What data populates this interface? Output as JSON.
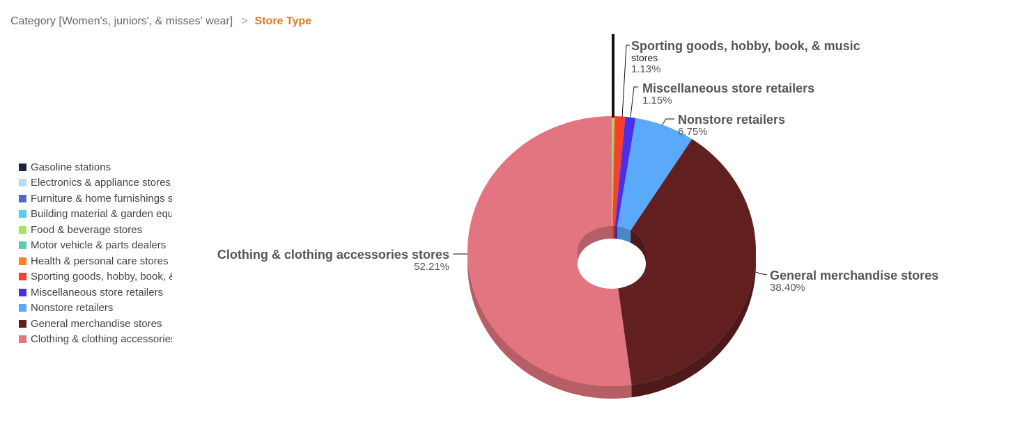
{
  "breadcrumb": {
    "parent": "Category [Women's, juniors', & misses' wear]",
    "separator": ">",
    "current": "Store Type"
  },
  "chart_data": {
    "type": "pie",
    "variant": "3d-donut",
    "legend_position": "left",
    "slices": [
      {
        "name": "Gasoline stations",
        "value": 0.02,
        "color": "#1b2447"
      },
      {
        "name": "Electronics & appliance stores",
        "value": 0.02,
        "color": "#b5dcf7"
      },
      {
        "name": "Furniture & home furnishings stores",
        "value": 0.02,
        "color": "#5468cc"
      },
      {
        "name": "Building material & garden equipment & supplies dealers",
        "value": 0.02,
        "color": "#5ccbef"
      },
      {
        "name": "Food & beverage stores",
        "value": 0.12,
        "color": "#a6e85a"
      },
      {
        "name": "Motor vehicle & parts dealers",
        "value": 0.02,
        "color": "#5ecbb0"
      },
      {
        "name": "Health & personal care stores",
        "value": 0.16,
        "color": "#ff7f2a"
      },
      {
        "name": "Sporting goods, hobby, book, & music stores",
        "value": 1.13,
        "color": "#f5402c"
      },
      {
        "name": "Miscellaneous store retailers",
        "value": 1.15,
        "color": "#4a2fe8"
      },
      {
        "name": "Nonstore retailers",
        "value": 6.75,
        "color": "#5aa9fa"
      },
      {
        "name": "General merchandise stores",
        "value": 38.4,
        "color": "#611f1f"
      },
      {
        "name": "Clothing & clothing accessories stores",
        "value": 52.21,
        "color": "#e37580"
      }
    ],
    "labels": [
      {
        "name": "Sporting goods, hobby, book, & music",
        "sub": "stores",
        "pct": "1.13%"
      },
      {
        "name": "Miscellaneous store retailers",
        "pct": "1.15%"
      },
      {
        "name": "Nonstore retailers",
        "pct": "6.75%"
      },
      {
        "name": "General merchandise stores",
        "pct": "38.40%"
      },
      {
        "name": "Clothing & clothing accessories stores",
        "pct": "52.21%"
      }
    ]
  }
}
